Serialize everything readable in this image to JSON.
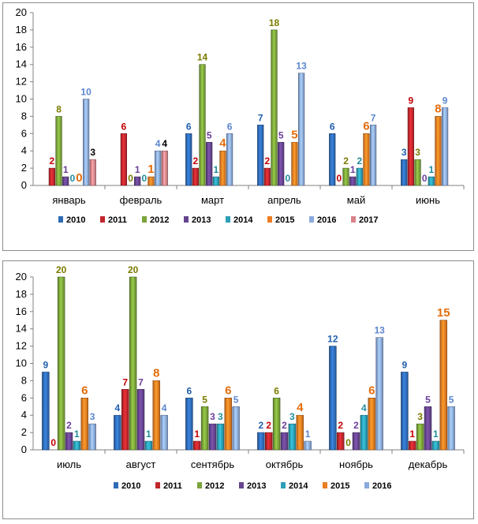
{
  "colors": {
    "2010": "#2e6bb6",
    "2011": "#c0272d",
    "2012": "#7aa43a",
    "2013": "#66448f",
    "2014": "#2c9fb5",
    "2015": "#ec7d22",
    "2016": "#8aa9de",
    "2017": "#d9848a"
  },
  "label_colors": {
    "2010": "#1f5fae",
    "2011": "#c00000",
    "2012": "#7a7a00",
    "2013": "#6a3d9a",
    "2014": "#1f8c9c",
    "2015": "#e46c0a",
    "2016": "#5b86cf",
    "2017": "#000000"
  },
  "chart_data": [
    {
      "type": "bar",
      "categories": [
        "январь",
        "февраль",
        "март",
        "апрель",
        "май",
        "июнь"
      ],
      "ylim": [
        0,
        20
      ],
      "yticks": [
        0,
        2,
        4,
        6,
        8,
        10,
        12,
        14,
        16,
        18,
        20
      ],
      "grid": false,
      "legend": "bottom",
      "series": [
        {
          "name": "2010",
          "values": [
            null,
            null,
            6,
            7,
            6,
            3
          ]
        },
        {
          "name": "2011",
          "values": [
            2,
            6,
            2,
            2,
            0,
            9
          ]
        },
        {
          "name": "2012",
          "values": [
            8,
            0,
            14,
            18,
            2,
            3
          ]
        },
        {
          "name": "2013",
          "values": [
            1,
            1,
            5,
            5,
            1,
            0
          ]
        },
        {
          "name": "2014",
          "values": [
            0,
            0,
            1,
            0,
            2,
            1
          ]
        },
        {
          "name": "2015",
          "values": [
            0,
            1,
            4,
            5,
            6,
            8
          ]
        },
        {
          "name": "2016",
          "values": [
            10,
            4,
            6,
            13,
            7,
            9
          ]
        },
        {
          "name": "2017",
          "values": [
            3,
            4,
            null,
            null,
            null,
            null
          ]
        }
      ]
    },
    {
      "type": "bar",
      "categories": [
        "июль",
        "август",
        "сентябрь",
        "октябрь",
        "ноябрь",
        "декабрь"
      ],
      "ylim": [
        0,
        20
      ],
      "yticks": [
        0,
        2,
        4,
        6,
        8,
        10,
        12,
        14,
        16,
        18,
        20
      ],
      "grid": false,
      "legend": "bottom",
      "series": [
        {
          "name": "2010",
          "values": [
            9,
            4,
            6,
            2,
            12,
            9
          ]
        },
        {
          "name": "2011",
          "values": [
            0,
            7,
            1,
            2,
            2,
            1
          ]
        },
        {
          "name": "2012",
          "values": [
            20,
            20,
            5,
            6,
            0,
            3
          ]
        },
        {
          "name": "2013",
          "values": [
            2,
            7,
            3,
            2,
            2,
            5
          ]
        },
        {
          "name": "2014",
          "values": [
            1,
            1,
            3,
            3,
            4,
            1
          ]
        },
        {
          "name": "2015",
          "values": [
            6,
            8,
            6,
            4,
            6,
            15
          ]
        },
        {
          "name": "2016",
          "values": [
            3,
            4,
            5,
            1,
            13,
            5
          ]
        }
      ]
    }
  ]
}
